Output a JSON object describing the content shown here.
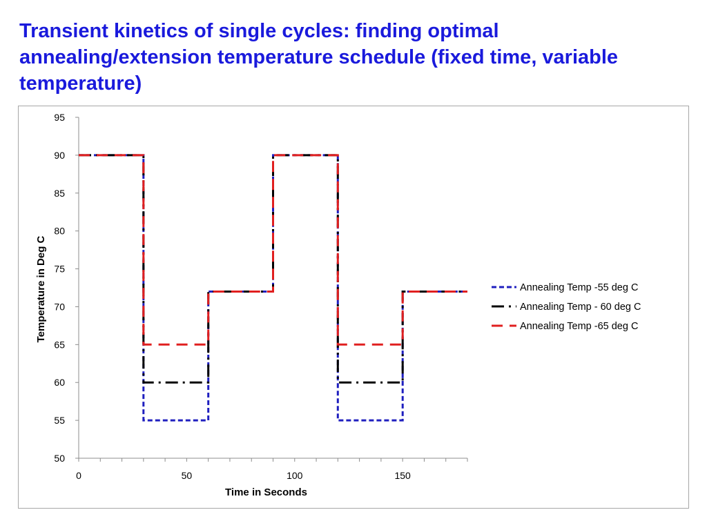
{
  "slide": {
    "title": "Transient kinetics of single cycles: finding optimal annealing/extension temperature schedule (fixed time, variable temperature)"
  },
  "chart_data": {
    "type": "line",
    "title": "",
    "xlabel": "Time in Seconds",
    "ylabel": "Temperature in Deg C",
    "xlim": [
      0,
      180
    ],
    "ylim": [
      50,
      95
    ],
    "xticks": [
      0,
      50,
      100,
      150
    ],
    "yticks": [
      50,
      55,
      60,
      65,
      70,
      75,
      80,
      85,
      90,
      95
    ],
    "grid": false,
    "legend_position": "right",
    "series": [
      {
        "name": "Annealing Temp -55 deg C",
        "color": "#1f1fbf",
        "style": "dashed",
        "x": [
          0,
          30,
          30,
          60,
          60,
          90,
          90,
          120,
          120,
          150,
          150,
          180
        ],
        "y": [
          90,
          90,
          55,
          55,
          72,
          72,
          90,
          90,
          55,
          55,
          72,
          72
        ]
      },
      {
        "name": "Annealing Temp - 60 deg C",
        "color": "#000000",
        "style": "dashdot",
        "x": [
          0,
          30,
          30,
          60,
          60,
          90,
          90,
          120,
          120,
          150,
          150,
          180
        ],
        "y": [
          90,
          90,
          60,
          60,
          72,
          72,
          90,
          90,
          60,
          60,
          72,
          72
        ]
      },
      {
        "name": "Annealing Temp -65 deg C",
        "color": "#e01f1f",
        "style": "longdash",
        "x": [
          0,
          30,
          30,
          60,
          60,
          90,
          90,
          120,
          120,
          150,
          150,
          180
        ],
        "y": [
          90,
          90,
          65,
          65,
          72,
          72,
          90,
          90,
          65,
          65,
          72,
          72
        ]
      }
    ]
  }
}
